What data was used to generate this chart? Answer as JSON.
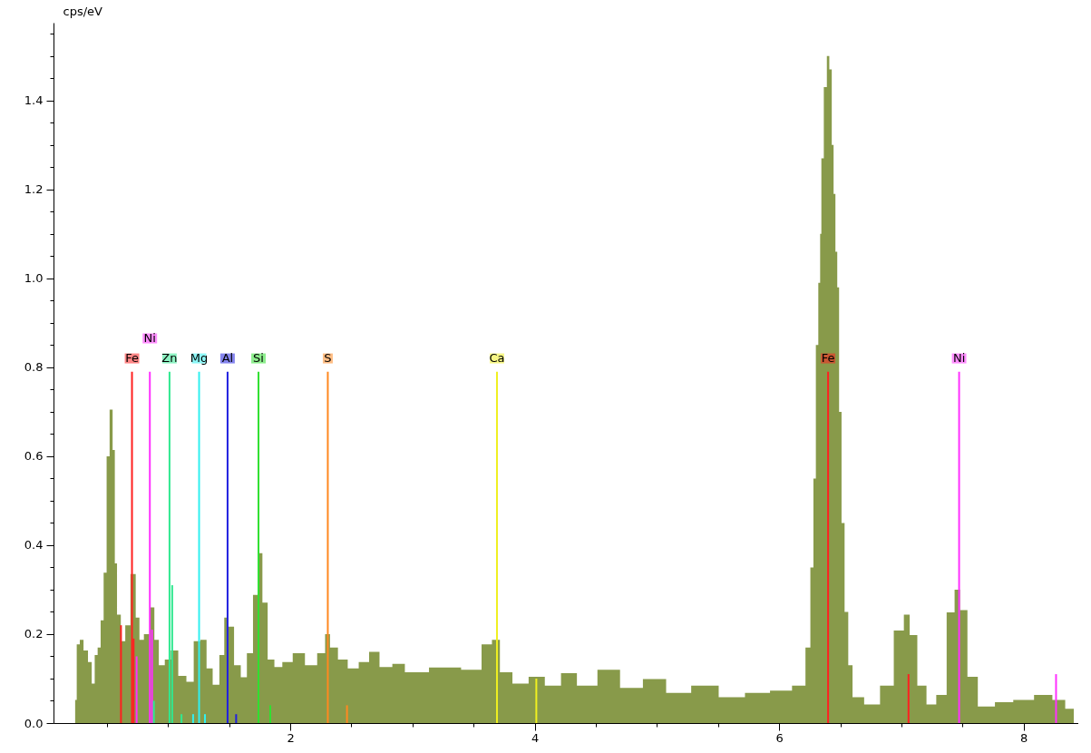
{
  "chart_data": {
    "type": "area",
    "ylabel": "cps/eV",
    "xlim": [
      0.1,
      8.41
    ],
    "ylim": [
      0,
      1.575
    ],
    "xticks": [
      {
        "value": 0.5,
        "label": null
      },
      {
        "value": 1,
        "label": null
      },
      {
        "value": 1.5,
        "label": null
      },
      2,
      {
        "value": 2.5,
        "label": null
      },
      {
        "value": 3,
        "label": null
      },
      {
        "value": 3.5,
        "label": null
      },
      4,
      {
        "value": 4.5,
        "label": null
      },
      {
        "value": 5,
        "label": null
      },
      {
        "value": 5.5,
        "label": null
      },
      6,
      {
        "value": 6.5,
        "label": null
      },
      {
        "value": 7,
        "label": null
      },
      {
        "value": 7.5,
        "label": null
      },
      8
    ],
    "yticks": [
      {
        "value": 0,
        "label": "0.0"
      },
      {
        "value": 0.05,
        "label": null
      },
      {
        "value": 0.1,
        "label": null
      },
      {
        "value": 0.15,
        "label": null
      },
      0.2,
      {
        "value": 0.25,
        "label": null
      },
      {
        "value": 0.3,
        "label": null
      },
      {
        "value": 0.35,
        "label": null
      },
      0.4,
      {
        "value": 0.45,
        "label": null
      },
      {
        "value": 0.5,
        "label": null
      },
      {
        "value": 0.55,
        "label": null
      },
      0.6,
      {
        "value": 0.65,
        "label": null
      },
      {
        "value": 0.7,
        "label": null
      },
      {
        "value": 0.75,
        "label": null
      },
      0.8,
      {
        "value": 0.85,
        "label": null
      },
      {
        "value": 0.9,
        "label": null
      },
      {
        "value": 0.95,
        "label": null
      },
      {
        "value": 1,
        "label": "1.0"
      },
      {
        "value": 1.05,
        "label": null
      },
      {
        "value": 1.1,
        "label": null
      },
      {
        "value": 1.15,
        "label": null
      },
      1.2,
      {
        "value": 1.25,
        "label": null
      },
      {
        "value": 1.3,
        "label": null
      },
      {
        "value": 1.35,
        "label": null
      },
      1.4,
      {
        "value": 1.45,
        "label": null
      },
      {
        "value": 1.5,
        "label": null
      },
      {
        "value": 1.55,
        "label": null
      }
    ],
    "series": [
      {
        "color": "#889a4a",
        "x": [
          0.24,
          0.266,
          0.29,
          0.327,
          0.363,
          0.388,
          0.412,
          0.436,
          0.461,
          0.485,
          0.51,
          0.534,
          0.559,
          0.57,
          0.595,
          0.632,
          0.668,
          0.717,
          0.754,
          0.778,
          0.827,
          0.876,
          0.9,
          0.949,
          0.998,
          1.047,
          1.12,
          1.18,
          1.24,
          1.29,
          1.34,
          1.39,
          1.45,
          1.47,
          1.51,
          1.57,
          1.62,
          1.67,
          1.72,
          1.754,
          1.79,
          1.84,
          1.9,
          1.97,
          2.07,
          2.17,
          2.27,
          2.3,
          2.35,
          2.43,
          2.51,
          2.61,
          2.68,
          2.78,
          2.89,
          2.985,
          3.285,
          3.51,
          3.62,
          3.68,
          3.75,
          3.885,
          4.015,
          4.15,
          4.28,
          4.41,
          4.616,
          4.78,
          4.99,
          5.16,
          5.4,
          5.61,
          5.83,
          6.02,
          6.19,
          6.24,
          6.27,
          6.29,
          6.31,
          6.33,
          6.34,
          6.35,
          6.38,
          6.4,
          6.42,
          6.44,
          6.45,
          6.47,
          6.48,
          6.5,
          6.52,
          6.55,
          6.58,
          6.62,
          6.77,
          6.88,
          6.995,
          7.045,
          7.09,
          7.17,
          7.24,
          7.33,
          7.41,
          7.46,
          7.5,
          7.58,
          7.67,
          7.86,
          7.97,
          8.2,
          8.27,
          8.41
        ],
        "values": [
          0.052,
          0.177,
          0.187,
          0.163,
          0.137,
          0.089,
          0.153,
          0.17,
          0.231,
          0.338,
          0.6,
          0.705,
          0.614,
          0.359,
          0.244,
          0.184,
          0.22,
          0.335,
          0.237,
          0.187,
          0.2,
          0.26,
          0.187,
          0.13,
          0.143,
          0.163,
          0.106,
          0.093,
          0.184,
          0.187,
          0.123,
          0.086,
          0.153,
          0.237,
          0.217,
          0.13,
          0.103,
          0.157,
          0.288,
          0.382,
          0.271,
          0.143,
          0.126,
          0.137,
          0.157,
          0.13,
          0.157,
          0.2,
          0.17,
          0.143,
          0.123,
          0.137,
          0.16,
          0.126,
          0.133,
          0.114,
          0.125,
          0.12,
          0.177,
          0.187,
          0.114,
          0.089,
          0.104,
          0.084,
          0.112,
          0.084,
          0.12,
          0.079,
          0.099,
          0.068,
          0.084,
          0.058,
          0.068,
          0.073,
          0.084,
          0.17,
          0.35,
          0.55,
          0.85,
          0.99,
          1.1,
          1.27,
          1.43,
          1.5,
          1.47,
          1.3,
          1.19,
          1.06,
          0.98,
          0.7,
          0.45,
          0.25,
          0.13,
          0.058,
          0.042,
          0.084,
          0.208,
          0.244,
          0.198,
          0.084,
          0.042,
          0.063,
          0.249,
          0.3,
          0.254,
          0.104,
          0.037,
          0.047,
          0.052,
          0.063,
          0.052,
          0.032
        ]
      },
      {
        "type": "bar",
        "x": [
          0.615,
          0.705,
          0.718,
          0.743,
          0.851,
          0.869,
          0.884,
          1.012,
          1.034,
          1.11,
          1.205,
          1.254,
          1.302,
          1.487,
          1.557,
          1.74,
          1.836,
          2.307,
          2.464,
          3.691,
          4.013,
          6.4,
          7.058,
          7.472,
          8.265
        ],
        "values": [
          0.22,
          0.79,
          0.19,
          0.15,
          0.79,
          0.21,
          0.05,
          0.79,
          0.31,
          0.02,
          0.02,
          0.79,
          0.02,
          0.79,
          0.02,
          0.79,
          0.04,
          0.79,
          0.04,
          0.79,
          0.1,
          0.79,
          0.11,
          0.79,
          0.11
        ],
        "colors": [
          "#ff2020",
          "#ff2020",
          "#ff2020",
          "#ff30ff",
          "#ff30ff",
          "#ff30ff",
          "#30e890",
          "#30e890",
          "#30e890",
          "#30e890",
          "#30f0f0",
          "#30f0f0",
          "#30f0f0",
          "#2020e0",
          "#2020e0",
          "#30e030",
          "#30e030",
          "#ff8820",
          "#ff8820",
          "#f0f020",
          "#f0f020",
          "#ff2020",
          "#ff2020",
          "#ff30ff",
          "#ff30ff"
        ]
      }
    ],
    "annotations": [
      {
        "text": "Fe",
        "x": 0.705,
        "y": 0.82
      },
      {
        "text": "Ni",
        "x": 0.851,
        "y": 0.865
      },
      {
        "text": "Zn",
        "x": 1.012,
        "y": 0.82
      },
      {
        "text": "Mg",
        "x": 1.254,
        "y": 0.82
      },
      {
        "text": "Al",
        "x": 1.487,
        "y": 0.82
      },
      {
        "text": "Si",
        "x": 1.74,
        "y": 0.82
      },
      {
        "text": "S",
        "x": 2.307,
        "y": 0.82
      },
      {
        "text": "Ca",
        "x": 3.691,
        "y": 0.82
      },
      {
        "text": "Fe",
        "x": 6.4,
        "y": 0.82
      },
      {
        "text": "Ni",
        "x": 7.472,
        "y": 0.82
      }
    ]
  }
}
